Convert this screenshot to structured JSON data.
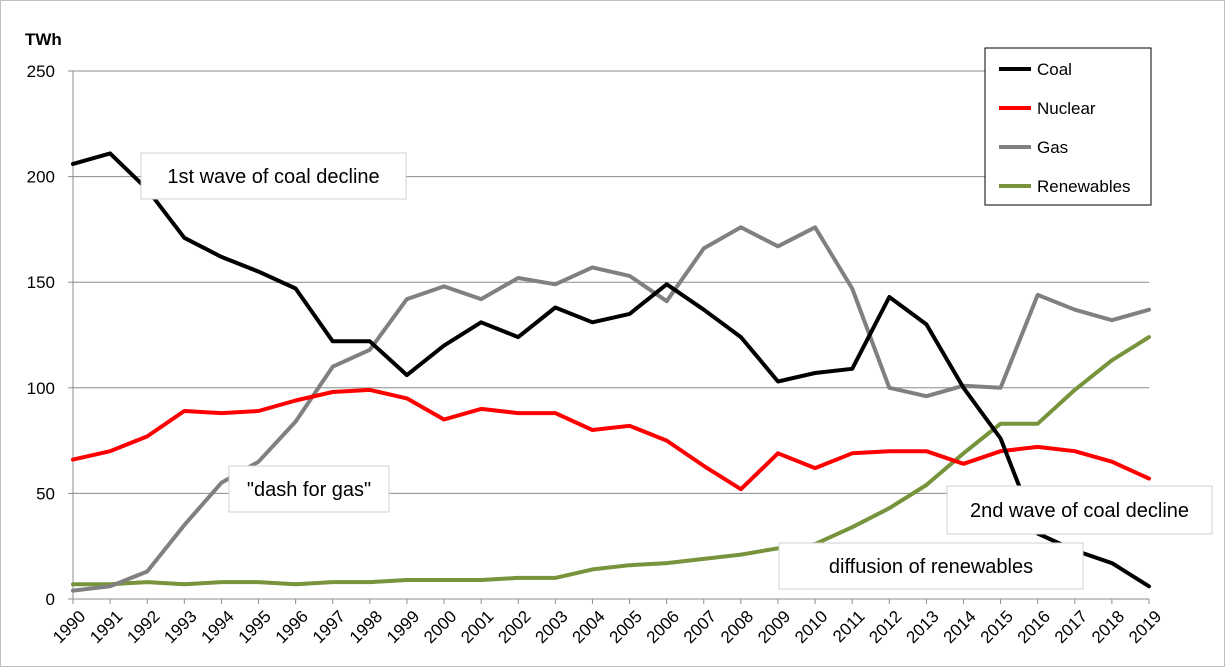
{
  "chart_data": {
    "type": "line",
    "ylabel": "TWh",
    "ylim": [
      0,
      250
    ],
    "yticks": [
      0,
      50,
      100,
      150,
      200,
      250
    ],
    "grid": "horizontal",
    "legend_position": "top-right",
    "x": [
      "1990",
      "1991",
      "1992",
      "1993",
      "1994",
      "1995",
      "1996",
      "1997",
      "1998",
      "1999",
      "2000",
      "2001",
      "2002",
      "2003",
      "2004",
      "2005",
      "2006",
      "2007",
      "2008",
      "2009",
      "2010",
      "2011",
      "2012",
      "2013",
      "2014",
      "2015",
      "2016",
      "2017",
      "2018",
      "2019"
    ],
    "series": [
      {
        "name": "Coal",
        "color": "#000000",
        "values": [
          206,
          211,
          194,
          171,
          162,
          155,
          147,
          122,
          122,
          106,
          120,
          131,
          124,
          138,
          131,
          135,
          149,
          137,
          124,
          103,
          107,
          109,
          143,
          130,
          100,
          76,
          31,
          23,
          17,
          6
        ]
      },
      {
        "name": "Nuclear",
        "color": "#ff0000",
        "values": [
          66,
          70,
          77,
          89,
          88,
          89,
          94,
          98,
          99,
          95,
          85,
          90,
          88,
          88,
          80,
          82,
          75,
          63,
          52,
          69,
          62,
          69,
          70,
          70,
          64,
          70,
          72,
          70,
          65,
          57
        ]
      },
      {
        "name": "Gas",
        "color": "#808080",
        "values": [
          4,
          6,
          13,
          35,
          55,
          65,
          84,
          110,
          118,
          142,
          148,
          142,
          152,
          149,
          157,
          153,
          141,
          166,
          176,
          167,
          176,
          147,
          100,
          96,
          101,
          100,
          144,
          137,
          132,
          137
        ]
      },
      {
        "name": "Renewables",
        "color": "#77933c",
        "values": [
          7,
          7,
          8,
          7,
          8,
          8,
          7,
          8,
          8,
          9,
          9,
          9,
          10,
          10,
          14,
          16,
          17,
          19,
          21,
          24,
          26,
          34,
          43,
          54,
          69,
          83,
          83,
          99,
          113,
          124
        ]
      }
    ],
    "annotations": [
      {
        "id": "coal-wave-1",
        "text": "1st wave of coal decline"
      },
      {
        "id": "dash-for-gas",
        "text": "\"dash for gas\""
      },
      {
        "id": "coal-wave-2",
        "text": "2nd wave of coal decline"
      },
      {
        "id": "renewables-diffusion",
        "text": "diffusion of renewables"
      }
    ]
  }
}
